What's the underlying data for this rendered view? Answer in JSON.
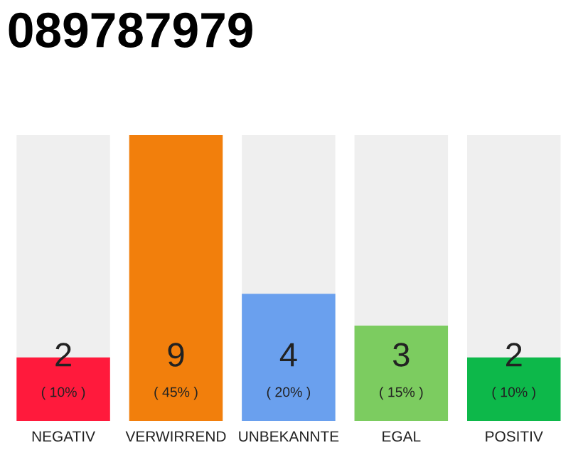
{
  "chart_data": {
    "type": "bar",
    "title": "089787979",
    "categories": [
      "NEGATIV",
      "VERWIRREND",
      "UNBEKANNTE",
      "EGAL",
      "POSITIV"
    ],
    "values": [
      2,
      9,
      4,
      3,
      2
    ],
    "colors": [
      "#ff1a3c",
      "#f27f0c",
      "#6aa0ee",
      "#7ccc60",
      "#0db84a"
    ],
    "value_labels": [
      "2\n( 10% )",
      "9\n( 45% )",
      "4\n( 20% )",
      "3\n( 15% )",
      "2\n( 10% )"
    ],
    "grid": false,
    "legend": false
  }
}
